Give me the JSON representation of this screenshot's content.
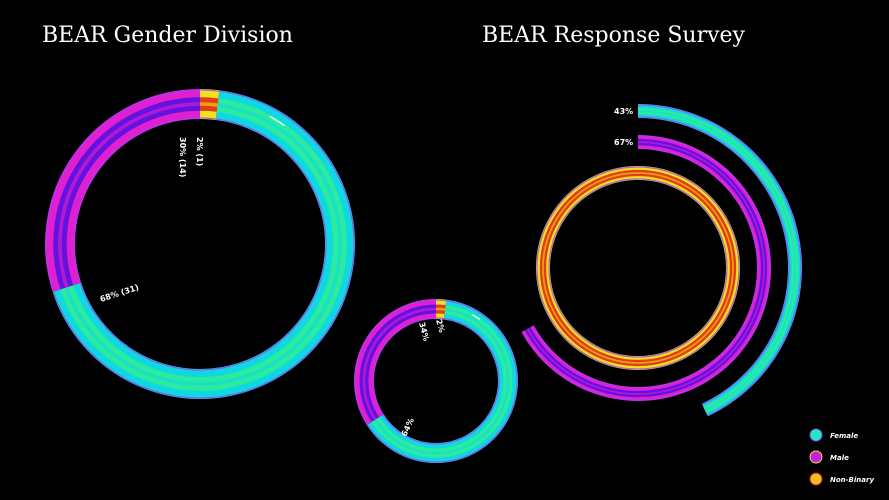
{
  "colors": {
    "female": "#20e8c0",
    "male": "#c020e8",
    "nonbinary": "#e8c020",
    "background": "#000000"
  },
  "chart_data": [
    {
      "type": "pie",
      "variant": "donut",
      "title": "BEAR Gender Division",
      "categories": [
        "Female",
        "Male",
        "Non-Binary"
      ],
      "values": [
        68,
        30,
        2
      ],
      "counts": [
        31,
        14,
        1
      ],
      "data_labels": [
        "68% (31)",
        "30% (14)",
        "2% (1)"
      ]
    },
    {
      "type": "pie",
      "variant": "donut",
      "title": "",
      "categories": [
        "Female",
        "Male",
        "Non-Binary"
      ],
      "values": [
        64,
        34,
        2
      ],
      "data_labels": [
        "64%",
        "34%",
        "2%"
      ]
    },
    {
      "type": "bar",
      "variant": "radial",
      "title": "BEAR Response Survey",
      "categories": [
        "Female",
        "Male",
        "Non-Binary"
      ],
      "values": [
        43,
        67,
        100
      ],
      "data_labels": [
        "43%",
        "67%",
        ""
      ]
    }
  ],
  "legend": {
    "items": [
      {
        "label": "Female",
        "color": "#20e8c0"
      },
      {
        "label": "Male",
        "color": "#c020e8"
      },
      {
        "label": "Non-Binary",
        "color": "#e8c020"
      }
    ]
  }
}
